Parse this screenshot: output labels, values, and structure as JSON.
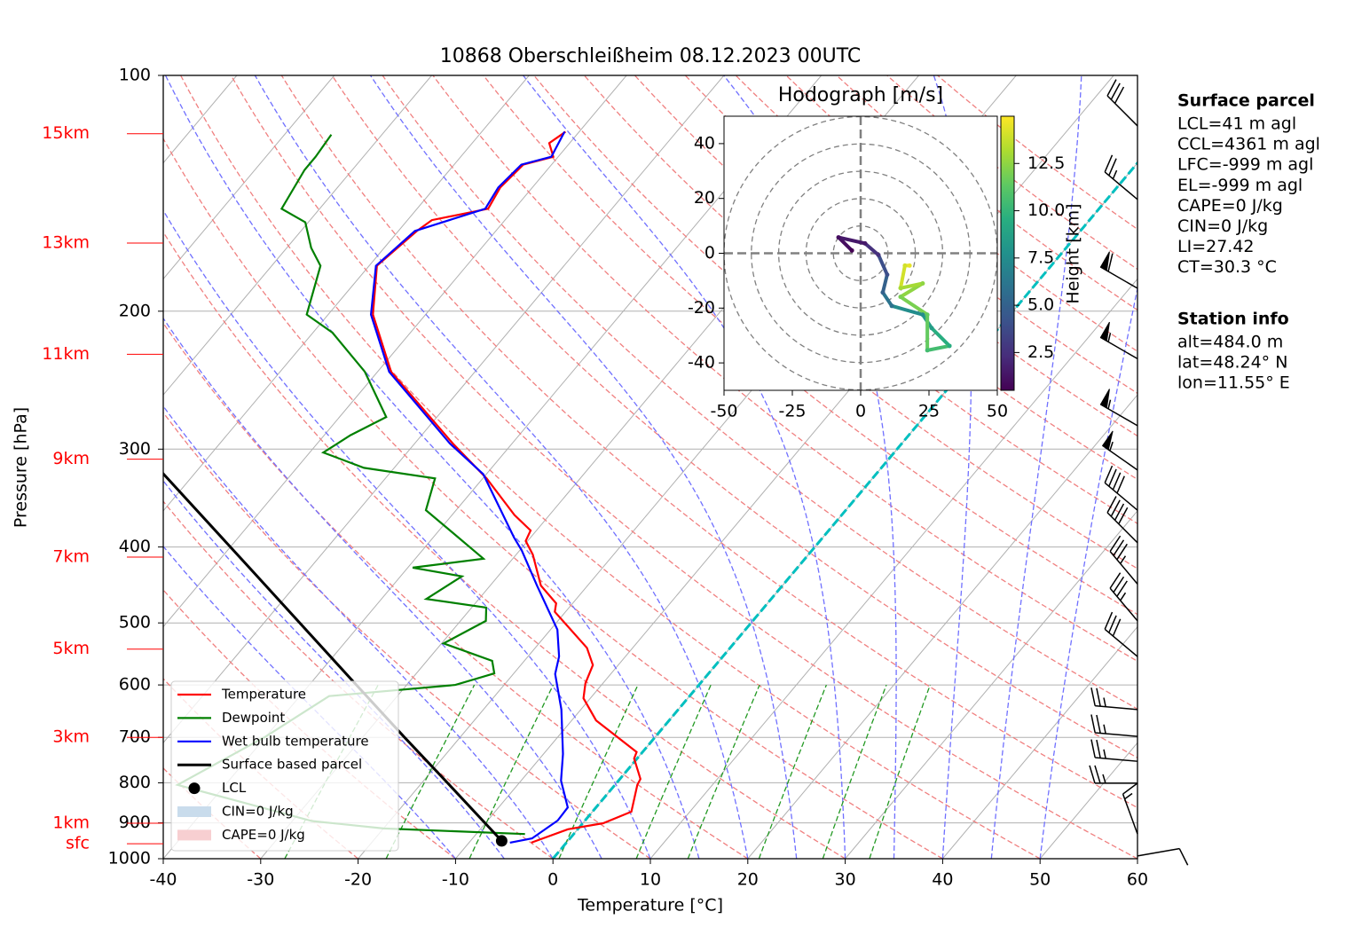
{
  "chart_data": [
    {
      "type": "skewt",
      "title": "10868 Oberschleißheim 08.12.2023 00UTC",
      "xlabel": "Temperature [°C]",
      "ylabel": "Pressure [hPa]",
      "xlim": [
        -40,
        60
      ],
      "ylim": [
        1000,
        100
      ],
      "log_y": true,
      "grid": true,
      "xticks": [
        -40,
        -30,
        -20,
        -10,
        0,
        10,
        20,
        30,
        40,
        50,
        60
      ],
      "yticks": [
        100,
        200,
        300,
        400,
        500,
        600,
        700,
        800,
        900,
        1000
      ],
      "legend": "lower left",
      "series": [
        {
          "name": "Temperature",
          "color": "#ff0000",
          "pressure": [
            954,
            917,
            901,
            871,
            805,
            791,
            745,
            731,
            666,
            624,
            597,
            566,
            538,
            484,
            472,
            448,
            409,
            393,
            381,
            364,
            327,
            295,
            239,
            202,
            175,
            158,
            153,
            148,
            139,
            130,
            127,
            122,
            118
          ],
          "values": [
            -3.6,
            -1.0,
            2.1,
            4.0,
            2.3,
            2.1,
            -0.3,
            -0.6,
            -7.5,
            -10.7,
            -11.8,
            -12.6,
            -14.7,
            -21.1,
            -21.7,
            -24.8,
            -28.3,
            -30.2,
            -30.6,
            -33.6,
            -39.6,
            -46.1,
            -58.6,
            -65.4,
            -69.2,
            -68.1,
            -67.5,
            -62.7,
            -63.3,
            -62.9,
            -60.5,
            -62.1,
            -61.4
          ]
        },
        {
          "name": "Dewpoint",
          "color": "#008000",
          "pressure": [
            930,
            915,
            895,
            805,
            698,
            620,
            600,
            580,
            559,
            531,
            497,
            478,
            466,
            436,
            425,
            414,
            383,
            359,
            327,
            317,
            303,
            288,
            273,
            239,
            213,
            202,
            175,
            166,
            154,
            148,
            132,
            127,
            119
          ],
          "values": [
            -5.0,
            -20.0,
            -28.0,
            -44.9,
            -40.0,
            -37.0,
            -25.0,
            -22.0,
            -23.3,
            -29.8,
            -27.4,
            -28.5,
            -35.4,
            -33.7,
            -39.5,
            -33.0,
            -38.5,
            -43.1,
            -44.9,
            -53.1,
            -58.6,
            -57.3,
            -55.2,
            -61.3,
            -68.0,
            -72.2,
            -75.0,
            -77.5,
            -80.3,
            -83.9,
            -84.9,
            -84.9,
            -85.2
          ]
        },
        {
          "name": "Wet bulb temperature",
          "color": "#0000ff",
          "pressure": [
            954,
            942,
            894,
            860,
            795,
            735,
            645,
            581,
            552,
            510,
            448,
            404,
            389,
            323,
            295,
            239,
            202,
            175,
            158,
            148,
            139,
            130,
            127,
            118
          ],
          "values": [
            -5.8,
            -3.9,
            -2.8,
            -2.9,
            -5.9,
            -8.0,
            -12.0,
            -15.7,
            -16.8,
            -19.3,
            -25.2,
            -29.8,
            -31.7,
            -40.3,
            -46.4,
            -58.8,
            -65.6,
            -69.3,
            -68.3,
            -63.0,
            -63.5,
            -63.1,
            -60.7,
            -61.5
          ]
        },
        {
          "name": "Surface based parcel",
          "color": "#000000",
          "pressure": [
            949,
            801,
            700,
            589,
            436,
            322
          ],
          "values": [
            -6.8,
            -17.3,
            -25.7,
            -36.3,
            -54.7,
            -73.3
          ]
        }
      ],
      "lcl": {
        "name": "LCL",
        "pressure": 949,
        "temperature": -6.8,
        "color": "#000000"
      },
      "shading": [
        {
          "name": "CIN=0 J/kg",
          "color": "#c9dcec"
        },
        {
          "name": "CAPE=0 J/kg",
          "color": "#f7cfd1"
        }
      ],
      "height_labels": [
        {
          "label": "15km",
          "pressure": 118.7
        },
        {
          "label": "13km",
          "pressure": 163.7
        },
        {
          "label": "11km",
          "pressure": 227
        },
        {
          "label": "9km",
          "pressure": 309
        },
        {
          "label": "7km",
          "pressure": 412
        },
        {
          "label": "5km",
          "pressure": 540
        },
        {
          "label": "3km",
          "pressure": 700
        },
        {
          "label": "1km",
          "pressure": 901
        },
        {
          "label": "sfc",
          "pressure": 957
        }
      ],
      "height_label_color": "#ff0000",
      "isotherms": [
        -110,
        -100,
        -90,
        -80,
        -70,
        -60,
        -50,
        -40,
        -30,
        -20,
        -10,
        0,
        10,
        20,
        30,
        40,
        50,
        60
      ],
      "freezing_isotherm": 0,
      "freezing_isotherm_color": "#00bfbf",
      "dry_adiabats": [
        -30,
        -20,
        -10,
        0,
        10,
        20,
        30,
        40,
        50,
        60,
        70,
        80,
        90,
        100,
        110,
        120,
        130,
        140,
        150,
        160,
        170,
        180,
        190,
        200
      ],
      "moist_adiabats": [
        -10,
        -5,
        0,
        5,
        10,
        15,
        20,
        25,
        30,
        35,
        40,
        45,
        50
      ],
      "mixing_ratios": [
        0.4,
        1,
        2,
        4,
        7,
        10,
        16,
        24,
        32
      ],
      "mixing_ratio_top": 600,
      "wind": {
        "pressure": [
          116,
          144,
          187,
          230,
          280,
          319,
          359,
          395,
          446,
          497,
          552,
          645,
          698,
          751,
          801,
          930,
          992
        ],
        "direction": [
          315,
          310,
          300,
          300,
          300,
          305,
          310,
          315,
          320,
          320,
          310,
          275,
          275,
          275,
          270,
          340,
          80
        ],
        "speed": [
          30,
          25,
          60,
          55,
          55,
          55,
          40,
          40,
          35,
          35,
          30,
          25,
          25,
          25,
          25,
          15,
          10
        ]
      }
    },
    {
      "type": "hodograph",
      "title": "Hodograph [m/s]",
      "xlim": [
        -50,
        50
      ],
      "ylim": [
        -50,
        50
      ],
      "xticks": [
        -50,
        -25,
        0,
        25,
        50
      ],
      "yticks": [
        -40,
        -20,
        0,
        20,
        40
      ],
      "rings": [
        10,
        20,
        30,
        40,
        50
      ],
      "u": [
        -3.2,
        -8.1,
        1.6,
        6.5,
        9.7,
        8.1,
        11.4,
        22.7,
        26.0,
        32.5,
        24.4,
        24.4,
        14.6,
        22.7,
        14.6,
        16.2,
        17.9
      ],
      "v": [
        1.0,
        5.8,
        3.6,
        -0.6,
        -7.8,
        -14.3,
        -19.2,
        -22.4,
        -27.3,
        -33.8,
        -35.4,
        -22.4,
        -15.9,
        -11.0,
        -12.7,
        -4.5,
        -4.5
      ],
      "height": [
        0.5,
        1.0,
        1.5,
        2.5,
        4.0,
        5.0,
        6.0,
        7.5,
        8.5,
        9.5,
        10.5,
        11.5,
        12.0,
        12.5,
        13.0,
        14.0,
        14.5
      ],
      "colorbar": {
        "label": "Height [km]",
        "clim": [
          0.5,
          15
        ],
        "ticks": [
          2.5,
          {
            "value": 5,
            "label": "5.0"
          },
          7.5,
          {
            "value": 10,
            "label": "10.0"
          },
          12.5
        ],
        "colormap": [
          "#440154",
          "#472d7b",
          "#3b528b",
          "#2c728e",
          "#21918c",
          "#28ae80",
          "#5ec962",
          "#addc30",
          "#fde725"
        ]
      }
    }
  ],
  "info_panels": [
    {
      "title": "Surface parcel",
      "lines": [
        "LCL=41 m agl",
        "CCL=4361 m agl",
        "LFC=-999 m agl",
        "EL=-999 m agl",
        "CAPE=0 J/kg",
        "CIN=0 J/kg",
        "LI=27.42",
        "CT=30.3 °C"
      ]
    },
    {
      "title": "Station info",
      "lines": [
        "alt=484.0 m",
        "lat=48.24° N",
        "lon=11.55° E"
      ]
    }
  ]
}
